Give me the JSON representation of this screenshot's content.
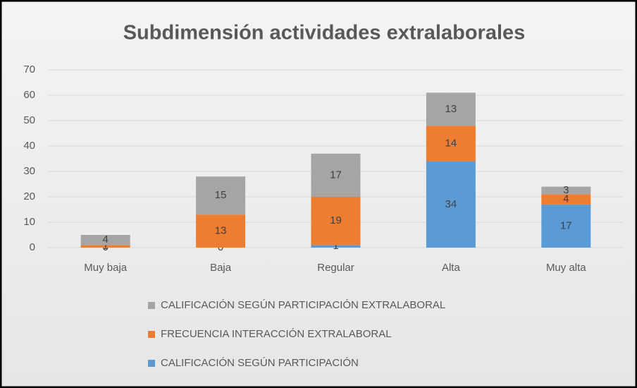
{
  "chart_data": {
    "type": "stacked_bar",
    "title": "Subdimensión actividades extralaborales",
    "categories": [
      "Muy baja",
      "Baja",
      "Regular",
      "Alta",
      "Muy alta"
    ],
    "series": [
      {
        "name": "CALIFICACIÓN SEGÚN PARTICIPACIÓN",
        "color": "#5b9bd5",
        "values": [
          0,
          0,
          1,
          34,
          17
        ]
      },
      {
        "name": "FRECUENCIA INTERACCIÓN EXTRALABORAL",
        "color": "#ed7d31",
        "values": [
          1,
          13,
          19,
          14,
          4
        ]
      },
      {
        "name": "CALIFICACIÓN SEGÚN PARTICIPACIÓN EXTRALABORAL",
        "color": "#a5a5a5",
        "values": [
          4,
          15,
          17,
          13,
          3
        ]
      }
    ],
    "ylim": [
      0,
      70
    ],
    "yticks": [
      0,
      10,
      20,
      30,
      40,
      50,
      60,
      70
    ],
    "grid": true,
    "legend": "bottom"
  }
}
